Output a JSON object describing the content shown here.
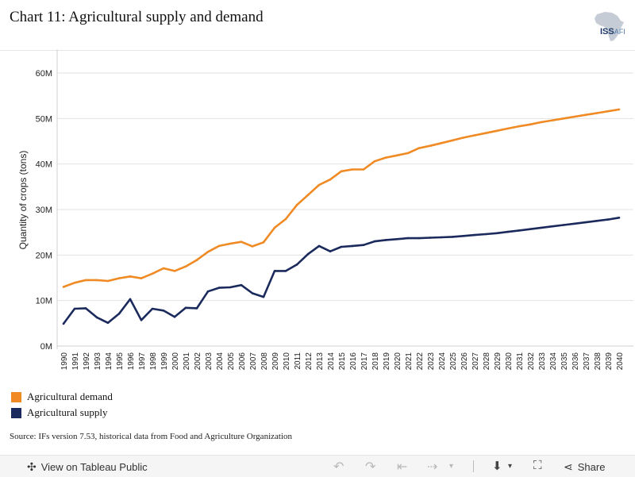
{
  "title": "Chart 11: Agricultural supply and demand",
  "logo": {
    "text": "ISS",
    "suffix": "AFI"
  },
  "source": "Source: IFs version 7.53, historical data from Food and Agriculture Organization",
  "colors": {
    "demand": "#f08a24",
    "supply": "#1b2a5c",
    "grid": "#e2e2e2"
  },
  "chart_data": {
    "type": "line",
    "ylabel": "Quantity of crops (tons)",
    "xlabel": "",
    "ylim": [
      0,
      65000000
    ],
    "yticks": [
      {
        "v": 0,
        "label": "0M"
      },
      {
        "v": 10000000,
        "label": "10M"
      },
      {
        "v": 20000000,
        "label": "20M"
      },
      {
        "v": 30000000,
        "label": "30M"
      },
      {
        "v": 40000000,
        "label": "40M"
      },
      {
        "v": 50000000,
        "label": "50M"
      },
      {
        "v": 60000000,
        "label": "60M"
      }
    ],
    "grid": true,
    "legend_position": "bottom-left",
    "x": [
      "1990",
      "1991",
      "1992",
      "1993",
      "1994",
      "1995",
      "1996",
      "1997",
      "1998",
      "1999",
      "2000",
      "2001",
      "2002",
      "2003",
      "2004",
      "2005",
      "2006",
      "2007",
      "2008",
      "2009",
      "2010",
      "2011",
      "2012",
      "2013",
      "2014",
      "2015",
      "2016",
      "2017",
      "2018",
      "2019",
      "2020",
      "2021",
      "2022",
      "2023",
      "2024",
      "2025",
      "2026",
      "2027",
      "2028",
      "2029",
      "2030",
      "2031",
      "2032",
      "2033",
      "2034",
      "2035",
      "2036",
      "2037",
      "2038",
      "2039",
      "2040"
    ],
    "series": [
      {
        "name": "Agricultural demand",
        "color": "#f08a24",
        "values": [
          13000000,
          13900000,
          14500000,
          14500000,
          14300000,
          14900000,
          15300000,
          14900000,
          15900000,
          17100000,
          16500000,
          17500000,
          18900000,
          20700000,
          22000000,
          22500000,
          22900000,
          21900000,
          22800000,
          26000000,
          27900000,
          31000000,
          33200000,
          35400000,
          36600000,
          38400000,
          38800000,
          38800000,
          40600000,
          41400000,
          41900000,
          42400000,
          43500000,
          44000000,
          44600000,
          45200000,
          45800000,
          46300000,
          46800000,
          47300000,
          47800000,
          48300000,
          48700000,
          49200000,
          49600000,
          50000000,
          50400000,
          50800000,
          51200000,
          51600000,
          52000000
        ]
      },
      {
        "name": "Agricultural supply",
        "color": "#1b2a5c",
        "values": [
          4900000,
          8200000,
          8300000,
          6300000,
          5100000,
          7100000,
          10300000,
          5700000,
          8200000,
          7800000,
          6400000,
          8400000,
          8300000,
          12000000,
          12800000,
          12900000,
          13400000,
          11600000,
          10800000,
          16500000,
          16500000,
          17900000,
          20200000,
          22000000,
          20800000,
          21800000,
          22000000,
          22200000,
          23000000,
          23300000,
          23500000,
          23700000,
          23700000,
          23800000,
          23900000,
          24000000,
          24200000,
          24400000,
          24600000,
          24800000,
          25100000,
          25400000,
          25700000,
          26000000,
          26300000,
          26600000,
          26900000,
          27200000,
          27500000,
          27800000,
          28200000
        ]
      }
    ]
  },
  "toolbar": {
    "view_label": "View on Tableau Public",
    "share_label": "Share"
  }
}
